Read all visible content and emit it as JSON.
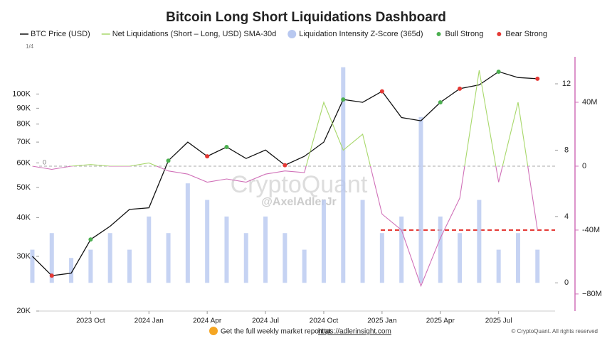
{
  "chart_data": {
    "type": "line",
    "title": "Bitcoin Long Short Liquidations Dashboard",
    "pager": "1/4",
    "watermark": "CryptoQuant",
    "watermark_handle": "@AxelAdlerJr",
    "footer_note": "Get the full weekly market report at",
    "footer_link": "https://adlerinsight.com",
    "copyright": "© CryptoQuant. All rights reserved",
    "categories": [
      null,
      null,
      null,
      "2023 Oct",
      null,
      null,
      "2024 Jan",
      null,
      null,
      "2024 Apr",
      null,
      null,
      "2024 Jul",
      null,
      null,
      "2024 Oct",
      null,
      null,
      "2025 Jan",
      null,
      null,
      "2025 Apr",
      null,
      null,
      "2025 Jul",
      null,
      null
    ],
    "series": [
      {
        "name": "BTC Price (USD)",
        "type": "line",
        "axis": "y",
        "color": "#111111",
        "values": [
          30000,
          26000,
          26500,
          34000,
          37500,
          42500,
          43000,
          61000,
          70000,
          63000,
          67500,
          62000,
          66000,
          59000,
          63000,
          70000,
          96000,
          94000,
          102000,
          84000,
          82000,
          94000,
          104000,
          107000,
          118000,
          113000,
          112000
        ]
      },
      {
        "name": "Net Liquidations (Short – Long, USD) SMA-30d",
        "type": "line",
        "axis": "y3",
        "color": "#a8d86b",
        "color_negative": "#d070b8",
        "values": [
          0,
          -2000000,
          0,
          1000000,
          0,
          0,
          2000000,
          -3000000,
          -5000000,
          -10000000,
          -8000000,
          -10000000,
          -5000000,
          -3000000,
          -4000000,
          40000000,
          10000000,
          20000000,
          -30000000,
          -40000000,
          -75000000,
          -45000000,
          -20000000,
          60000000,
          -10000000,
          40000000,
          -40000000
        ]
      },
      {
        "name": "Liquidation Intensity Z-Score (365d)",
        "type": "bar",
        "axis": "y2",
        "color": "#b8c8f0",
        "values": [
          2,
          3,
          1.5,
          2,
          3,
          2,
          4,
          3,
          6,
          5,
          4,
          3,
          4,
          3,
          2,
          5,
          13,
          5,
          3,
          4,
          10,
          4,
          3,
          5,
          2,
          3,
          2
        ]
      },
      {
        "name": "Bull Strong",
        "type": "scatter",
        "axis": "y",
        "color": "#4caf50",
        "values": [
          null,
          null,
          null,
          34000,
          null,
          null,
          null,
          61000,
          null,
          null,
          67500,
          null,
          null,
          null,
          null,
          null,
          96000,
          null,
          null,
          null,
          null,
          94000,
          null,
          null,
          118000,
          null,
          null
        ]
      },
      {
        "name": "Bear Strong",
        "type": "scatter",
        "axis": "y",
        "color": "#e53935",
        "values": [
          null,
          26000,
          null,
          null,
          null,
          null,
          null,
          null,
          null,
          63000,
          null,
          null,
          null,
          59000,
          null,
          null,
          null,
          null,
          102000,
          null,
          null,
          null,
          104000,
          null,
          null,
          null,
          112000
        ]
      }
    ],
    "log_scale": true,
    "ylim": [
      20000,
      125000
    ],
    "yticks": [
      {
        "value": 20000,
        "label": "20K"
      },
      {
        "value": 30000,
        "label": "30K"
      },
      {
        "value": 40000,
        "label": "40K"
      },
      {
        "value": 50000,
        "label": "50K"
      },
      {
        "value": 60000,
        "label": "60K"
      },
      {
        "value": 70000,
        "label": "70K"
      },
      {
        "value": 80000,
        "label": "80K"
      },
      {
        "value": 90000,
        "label": "90K"
      },
      {
        "value": 100000,
        "label": "100K"
      }
    ],
    "y2lim": [
      -1.7,
      13.2
    ],
    "y2ticks": [
      0,
      4,
      8,
      12
    ],
    "y3lim": [
      -90700000,
      64000000
    ],
    "y3ticks": [
      {
        "value": -80000000,
        "label": "−80M"
      },
      {
        "value": -40000000,
        "label": "-40M"
      },
      {
        "value": 0,
        "label": "0"
      },
      {
        "value": 40000000,
        "label": "40M"
      }
    ],
    "reference_lines": [
      {
        "value": 0,
        "label": "0",
        "color": "#aaaaaa"
      },
      {
        "value": -40000000,
        "color": "#e53935"
      }
    ]
  }
}
